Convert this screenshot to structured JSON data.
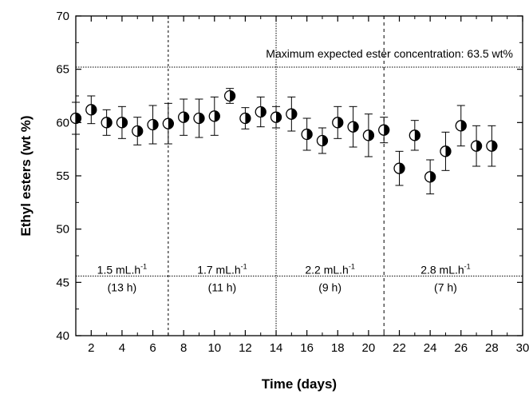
{
  "chart_data": {
    "type": "scatter",
    "xlabel": "Time (days)",
    "ylabel": "Ethyl esters (wt %)",
    "xlim": [
      1,
      30
    ],
    "ylim": [
      40,
      70
    ],
    "x_ticks": [
      2,
      4,
      6,
      8,
      10,
      12,
      14,
      16,
      18,
      20,
      22,
      24,
      26,
      28,
      30
    ],
    "y_ticks": [
      40,
      45,
      50,
      55,
      60,
      65,
      70
    ],
    "grid": false,
    "marker": "half-filled circle with error bars",
    "series": [
      {
        "x": [
          1,
          2,
          3,
          4,
          5,
          6,
          7,
          8,
          9,
          10,
          11,
          12,
          13,
          14,
          15,
          16,
          17,
          18,
          19,
          20,
          21,
          22,
          23,
          24,
          25,
          26,
          27,
          28
        ],
        "y": [
          60.4,
          61.2,
          60.0,
          60.0,
          59.2,
          59.8,
          59.9,
          60.5,
          60.4,
          60.6,
          62.5,
          60.4,
          61.0,
          60.5,
          60.8,
          58.9,
          58.3,
          60.0,
          59.6,
          58.8,
          59.3,
          55.7,
          58.8,
          54.9,
          57.3,
          59.7,
          57.8,
          57.8
        ],
        "y_error": [
          1.5,
          1.3,
          1.2,
          1.5,
          1.3,
          1.8,
          1.9,
          1.7,
          1.8,
          1.8,
          0.7,
          1.0,
          1.4,
          1.0,
          1.6,
          1.5,
          1.2,
          1.5,
          1.9,
          2.0,
          1.2,
          1.6,
          1.4,
          1.6,
          1.8,
          1.9,
          1.9,
          1.9
        ]
      }
    ],
    "reference_lines": {
      "horizontal": [
        65.2,
        45.6
      ],
      "vertical": [
        7,
        14,
        21
      ]
    },
    "annotations": {
      "max_expected": "Maximum expected ester concentration: 63.5 wt%",
      "segments": [
        {
          "rate": "1.5 mL.h",
          "exp": "-1",
          "time": "(13 h)",
          "x": 4
        },
        {
          "rate": "1.7 mL.h",
          "exp": "-1",
          "time": "(11 h)",
          "x": 10.5
        },
        {
          "rate": "2.2 mL.h",
          "exp": "-1",
          "time": "(9 h)",
          "x": 17.5
        },
        {
          "rate": "2.8 mL.h",
          "exp": "-1",
          "time": "(7 h)",
          "x": 25
        }
      ]
    }
  }
}
